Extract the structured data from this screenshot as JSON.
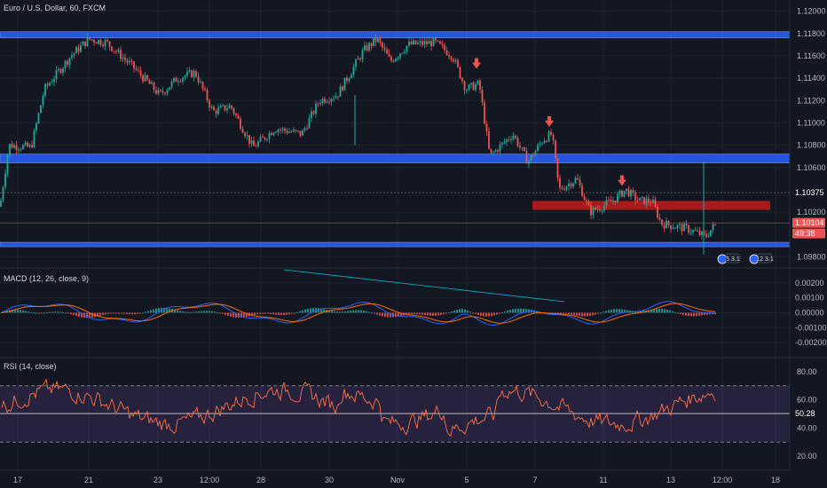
{
  "header": {
    "symbol_title": "Euro / U.S. Dollar, 60, FXCM"
  },
  "price_pane": {
    "y_range": [
      1.097,
      1.121
    ],
    "ticks": [
      "1.12000",
      "1.11800",
      "1.11600",
      "1.11400",
      "1.11200",
      "1.11000",
      "1.10800",
      "1.10600",
      "1.10200",
      "1.09800"
    ],
    "tick_values": [
      1.12,
      1.118,
      1.116,
      1.114,
      1.112,
      1.11,
      1.108,
      1.106,
      1.102,
      1.098
    ],
    "last_price_tag": "1.10104",
    "last_price": 1.10104,
    "countdown_tag": "49:38",
    "crosshair_tag": "1.10375",
    "crosshair_price": 1.10375,
    "events": [
      "5 3.1",
      "12 3.1"
    ],
    "colors": {
      "up": "#26a69a",
      "down": "#ef5350",
      "support_zone": "#2962ff",
      "resistance_zone": "#b71c1c",
      "arrow": "#ef5350"
    }
  },
  "macd_pane": {
    "title": "MACD (12, 26, close, 9)",
    "y_range": [
      -0.003,
      0.003
    ],
    "ticks": [
      "0.00200",
      "0.00100",
      "0.00000",
      "-0.00100",
      "-0.00200"
    ],
    "tick_values": [
      0.002,
      0.001,
      0.0,
      -0.001,
      -0.002
    ]
  },
  "rsi_pane": {
    "title": "RSI (14, close)",
    "y_range": [
      10,
      90
    ],
    "ticks": [
      "80.00",
      "60.00",
      "40.00",
      "20.00"
    ],
    "tick_values": [
      80,
      60,
      40,
      20
    ],
    "last_value_tag": "50.28",
    "last_value": 50.28,
    "band_upper": 70,
    "band_lower": 30
  },
  "time_axis": {
    "labels": [
      "17",
      "21",
      "23",
      "12:00",
      "28",
      "30",
      "Nov",
      "5",
      "7",
      "11",
      "13",
      "12:00",
      "18"
    ]
  }
}
